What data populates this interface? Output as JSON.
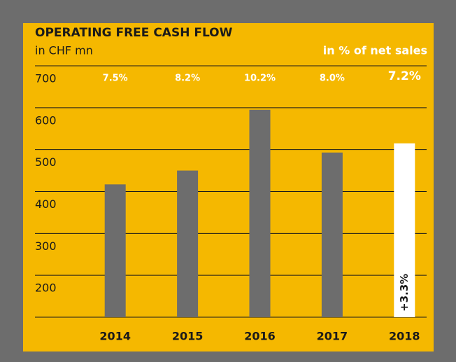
{
  "chart_data": {
    "type": "bar",
    "title": "OPERATING FREE CASH FLOW",
    "subtitle": "in CHF mn",
    "secondary_label": "in % of net sales",
    "categories": [
      "2014",
      "2015",
      "2016",
      "2017",
      "2018"
    ],
    "values": [
      417,
      450,
      595,
      493,
      515
    ],
    "colors": [
      "#6d6d6d",
      "#6d6d6d",
      "#6d6d6d",
      "#6d6d6d",
      "#ffffff"
    ],
    "ylim": [
      100,
      700
    ],
    "yticks": [
      200,
      300,
      400,
      500,
      600,
      700
    ],
    "grid": true,
    "net_sales_pct": {
      "values": [
        7.5,
        8.2,
        10.2,
        8.0,
        7.2
      ],
      "value_labels": [
        "7.5%",
        "8.2%",
        "10.2%",
        "8.0%",
        "7.2%"
      ]
    },
    "annotation": "+3.3%"
  }
}
